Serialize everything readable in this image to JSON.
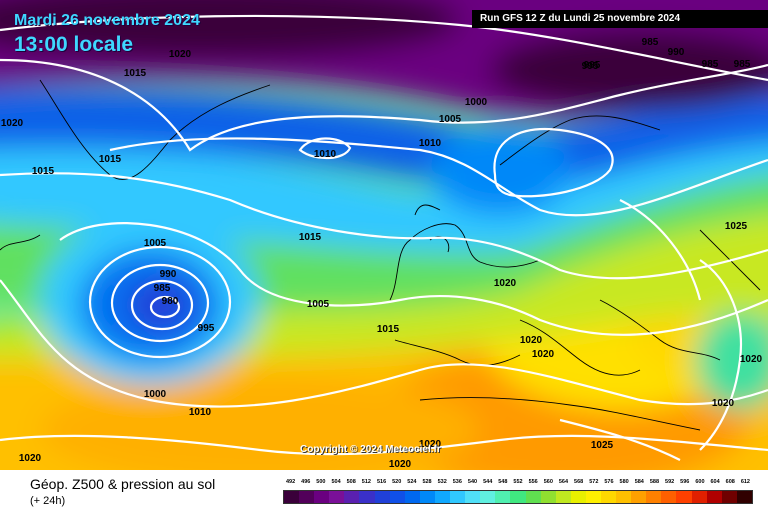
{
  "header": {
    "date": "Mardi 26 novembre 2024",
    "local_time": "13:00 locale",
    "run": "Run GFS 12 Z du Lundi 25 novembre 2024"
  },
  "copyright": "Copyright © 2024 Meteociel.fr",
  "footer": {
    "title": "Géop. Z500 & pression au sol",
    "subtitle": "(+ 24h)"
  },
  "isobar_labels": [
    "1020",
    "1015",
    "1020",
    "1015",
    "1015",
    "1010",
    "1005",
    "1000",
    "995",
    "990",
    "985",
    "985",
    "985",
    "995",
    "1010",
    "1015",
    "1005",
    "990",
    "985",
    "980",
    "995",
    "1005",
    "1000",
    "1010",
    "1020",
    "1020",
    "1015",
    "1020",
    "1020",
    "1025",
    "1020",
    "1020",
    "1020",
    "1025",
    "1020"
  ],
  "scale": {
    "labels": [
      "492",
      "496",
      "500",
      "504",
      "508",
      "512",
      "516",
      "520",
      "524",
      "528",
      "532",
      "536",
      "540",
      "544",
      "548",
      "552",
      "556",
      "560",
      "564",
      "568",
      "572",
      "576",
      "580",
      "584",
      "588",
      "592",
      "596",
      "600",
      "604",
      "608",
      "612"
    ],
    "colors": [
      "#3a003a",
      "#52005a",
      "#6a0080",
      "#7a1098",
      "#5a20b0",
      "#3a30c8",
      "#2040d8",
      "#1050e8",
      "#0068f0",
      "#0088f8",
      "#10a8ff",
      "#30c8ff",
      "#50e0f8",
      "#60f0e0",
      "#50f0b0",
      "#40e880",
      "#60e050",
      "#90e030",
      "#c0e820",
      "#e8f000",
      "#fff000",
      "#ffd800",
      "#ffc000",
      "#ffa000",
      "#ff8000",
      "#ff6000",
      "#ff4000",
      "#e02000",
      "#b00000",
      "#700000",
      "#300000"
    ]
  },
  "icons": [
    "isobar-line",
    "coastline"
  ]
}
